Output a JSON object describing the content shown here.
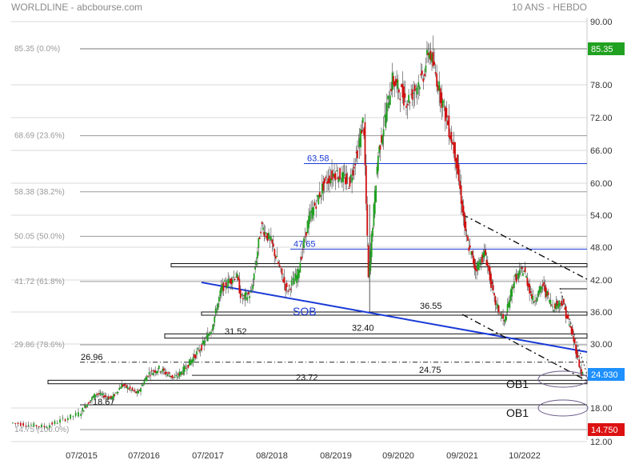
{
  "header": {
    "left": "WORLDLINE - abcbourse.com",
    "right": "10 ANS - HEBDO"
  },
  "colors": {
    "up": "#20a020",
    "down": "#d01010",
    "trend_blue": "#1a3ad6",
    "grid": "#d9d9d9",
    "fib": "#9a9a9a",
    "last_price_badge": "#1e90ff",
    "high_badge": "#21a121",
    "low_badge": "#dd1111"
  },
  "chart_data": {
    "type": "candlestick",
    "title": "WORLDLINE - abcbourse.com",
    "subtitle": "10 ANS - HEBDO",
    "y_axis": {
      "side": "right",
      "ylim": [
        12.0,
        90.0
      ],
      "ticks": [
        "90.00",
        "78.00",
        "72.00",
        "66.00",
        "60.00",
        "54.00",
        "48.00",
        "42.00",
        "36.00",
        "30.00",
        "18.00",
        "12.00"
      ],
      "tick_values": [
        90,
        78,
        72,
        66,
        60,
        54,
        48,
        42,
        36,
        30,
        18,
        12
      ]
    },
    "x_axis": {
      "labels": [
        "07/2015",
        "07/2016",
        "07/2017",
        "08/2018",
        "08/2019",
        "09/2020",
        "09/2021",
        "10/2022"
      ]
    },
    "price_badges": [
      {
        "label": "85.35",
        "value": 85.35,
        "kind": "high"
      },
      {
        "label": "24.930",
        "value": 24.93,
        "kind": "last"
      },
      {
        "label": "14.750",
        "value": 14.75,
        "kind": "low"
      }
    ],
    "fibonacci_levels": [
      {
        "label": "85.35 (0.0%)",
        "value": 85.35
      },
      {
        "label": "68.69 (23.6%)",
        "value": 68.69
      },
      {
        "label": "58.38 (38.2%)",
        "value": 58.38
      },
      {
        "label": "50.05 (50.0%)",
        "value": 50.05
      },
      {
        "label": "41.72 (61.8%)",
        "value": 41.72
      },
      {
        "label": "29.86 (78.6%)",
        "value": 29.86
      },
      {
        "label": "14.75 (100.0%)",
        "value": 14.75
      }
    ],
    "horizontal_levels": [
      {
        "label": "63.58",
        "value": 63.58
      },
      {
        "label": "47.65",
        "value": 47.65
      }
    ],
    "zones": [
      {
        "label": "",
        "low": 44.4,
        "high": 45.0
      },
      {
        "label": "36.55",
        "low": 35.4,
        "high": 36.0
      },
      {
        "label": "32.40",
        "low": 31.1,
        "high": 31.9
      },
      {
        "label": "31.52",
        "low": 31.52,
        "high": 31.52
      },
      {
        "label": "26.96",
        "low": 26.96,
        "high": 26.96
      },
      {
        "label": "24.75",
        "low": 24.75,
        "high": 24.75
      },
      {
        "label": "23.72",
        "low": 23.0,
        "high": 23.72
      },
      {
        "label": "18.67",
        "low": 18.67,
        "high": 18.67
      }
    ],
    "annotations": [
      {
        "text": "SOB"
      },
      {
        "text": "OB1"
      },
      {
        "text": "OB1"
      }
    ],
    "path_points": [
      [
        "2015-01",
        15.8
      ],
      [
        "2015-04",
        15.2
      ],
      [
        "2015-07",
        17.2
      ],
      [
        "2015-10",
        21.0
      ],
      [
        "2016-01",
        20.0
      ],
      [
        "2016-03",
        22.8
      ],
      [
        "2016-06",
        21.0
      ],
      [
        "2016-08",
        25.0
      ],
      [
        "2016-10",
        25.9
      ],
      [
        "2017-01",
        24.2
      ],
      [
        "2017-03",
        26.0
      ],
      [
        "2017-06",
        29.5
      ],
      [
        "2017-08",
        33.0
      ],
      [
        "2017-10",
        40.5
      ],
      [
        "2018-01",
        43.0
      ],
      [
        "2018-02",
        38.5
      ],
      [
        "2018-04",
        39.5
      ],
      [
        "2018-06",
        52.0
      ],
      [
        "2018-08",
        49.0
      ],
      [
        "2018-11",
        40.0
      ],
      [
        "2019-01",
        43.0
      ],
      [
        "2019-03",
        53.0
      ],
      [
        "2019-06",
        60.0
      ],
      [
        "2019-08",
        62.0
      ],
      [
        "2019-11",
        60.0
      ],
      [
        "2020-01",
        67.0
      ],
      [
        "2020-02",
        72.0
      ],
      [
        "2020-03",
        42.0
      ],
      [
        "2020-05",
        65.0
      ],
      [
        "2020-08",
        79.0
      ],
      [
        "2020-11",
        75.0
      ],
      [
        "2021-02",
        80.0
      ],
      [
        "2021-03",
        85.35
      ],
      [
        "2021-05",
        77.0
      ],
      [
        "2021-08",
        65.0
      ],
      [
        "2021-10",
        50.0
      ],
      [
        "2021-12",
        44.0
      ],
      [
        "2022-02",
        47.0
      ],
      [
        "2022-04",
        38.0
      ],
      [
        "2022-06",
        34.0
      ],
      [
        "2022-08",
        42.0
      ],
      [
        "2022-10",
        44.0
      ],
      [
        "2022-12",
        38.0
      ],
      [
        "2023-02",
        41.0
      ],
      [
        "2023-04",
        37.0
      ],
      [
        "2023-06",
        38.0
      ],
      [
        "2023-08",
        32.0
      ],
      [
        "2023-10",
        25.0
      ]
    ]
  }
}
